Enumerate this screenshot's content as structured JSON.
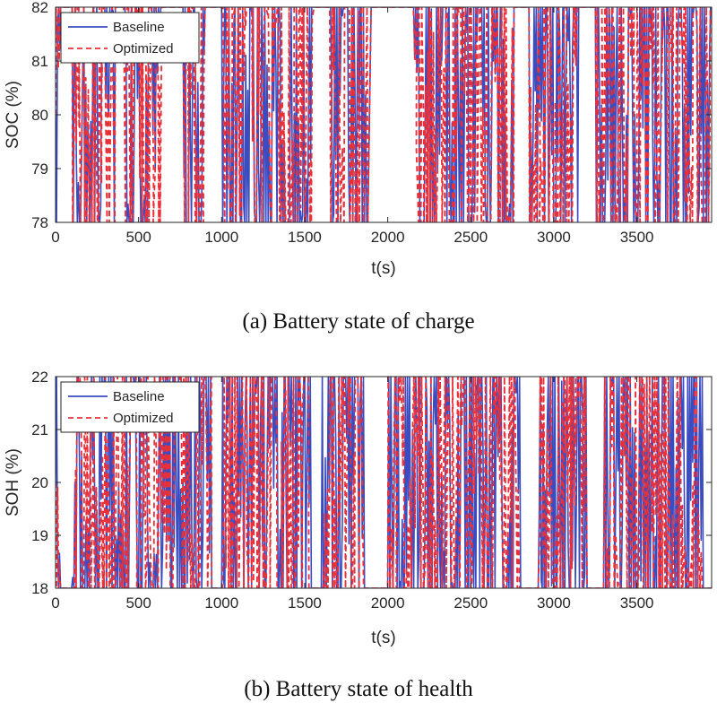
{
  "chart_data": [
    {
      "type": "line",
      "caption": "(a) Battery state of charge",
      "xlabel": "t(s)",
      "ylabel": "SOC (%)",
      "xlim": [
        0,
        3950
      ],
      "ylim": [
        78,
        82
      ],
      "x_ticks": [
        0,
        500,
        1000,
        1500,
        2000,
        2500,
        3000,
        3500
      ],
      "y_ticks": [
        78,
        79,
        80,
        81,
        82
      ],
      "grid": false,
      "legend_position": "top-left",
      "series": [
        {
          "name": "Baseline",
          "color": "#3b4cc0",
          "style": "solid"
        },
        {
          "name": "Optimized",
          "color": "#e8303a",
          "style": "dashed"
        }
      ],
      "signal": {
        "start": 80,
        "segments": [
          [
            0,
            80
          ],
          [
            30,
            82
          ],
          [
            100,
            82
          ],
          [
            150,
            78
          ],
          [
            170,
            82
          ],
          [
            200,
            79
          ],
          [
            230,
            82
          ],
          [
            260,
            78
          ],
          [
            290,
            82
          ],
          [
            320,
            80
          ],
          [
            360,
            82
          ],
          [
            410,
            82
          ],
          [
            450,
            78
          ],
          [
            480,
            82
          ],
          [
            520,
            78
          ],
          [
            560,
            82
          ],
          [
            600,
            79
          ],
          [
            640,
            82
          ],
          [
            760,
            82
          ],
          [
            800,
            78
          ],
          [
            830,
            82
          ],
          [
            870,
            78
          ],
          [
            900,
            82
          ],
          [
            1000,
            82
          ],
          [
            1050,
            78
          ],
          [
            1080,
            82
          ],
          [
            1120,
            78
          ],
          [
            1170,
            82
          ],
          [
            1210,
            78
          ],
          [
            1260,
            82
          ],
          [
            1300,
            78
          ],
          [
            1340,
            82
          ],
          [
            1400,
            78
          ],
          [
            1450,
            82
          ],
          [
            1500,
            78
          ],
          [
            1560,
            82
          ],
          [
            1650,
            82
          ],
          [
            1700,
            78
          ],
          [
            1740,
            82
          ],
          [
            1790,
            78
          ],
          [
            1840,
            82
          ],
          [
            1880,
            78
          ],
          [
            1900,
            82
          ],
          [
            2150,
            82
          ],
          [
            2200,
            78
          ],
          [
            2250,
            82
          ],
          [
            2300,
            79
          ],
          [
            2350,
            82
          ],
          [
            2400,
            78
          ],
          [
            2450,
            82
          ],
          [
            2500,
            78
          ],
          [
            2560,
            82
          ],
          [
            2600,
            78
          ],
          [
            2660,
            82
          ],
          [
            2720,
            78
          ],
          [
            2760,
            82
          ],
          [
            2850,
            82
          ],
          [
            2900,
            78
          ],
          [
            2950,
            82
          ],
          [
            3000,
            78
          ],
          [
            3060,
            82
          ],
          [
            3100,
            80
          ],
          [
            3150,
            82
          ],
          [
            3250,
            82
          ],
          [
            3300,
            78
          ],
          [
            3350,
            82
          ],
          [
            3400,
            78
          ],
          [
            3450,
            82
          ],
          [
            3500,
            78
          ],
          [
            3560,
            82
          ],
          [
            3620,
            79
          ],
          [
            3680,
            82
          ],
          [
            3720,
            78
          ],
          [
            3760,
            82
          ],
          [
            3800,
            78
          ],
          [
            3850,
            82
          ],
          [
            3900,
            78
          ],
          [
            3950,
            82
          ]
        ]
      }
    },
    {
      "type": "line",
      "caption": "(b) Battery state of health",
      "xlabel": "t(s)",
      "ylabel": "SOH (%)",
      "xlim": [
        0,
        3950
      ],
      "ylim": [
        18,
        22
      ],
      "x_ticks": [
        0,
        500,
        1000,
        1500,
        2000,
        2500,
        3000,
        3500
      ],
      "y_ticks": [
        18,
        19,
        20,
        21,
        22
      ],
      "grid": false,
      "legend_position": "top-left",
      "series": [
        {
          "name": "Baseline",
          "color": "#3b4cc0",
          "style": "solid"
        },
        {
          "name": "Optimized",
          "color": "#e8303a",
          "style": "dashed"
        }
      ],
      "signal": {
        "start": 20,
        "segments": [
          [
            0,
            20
          ],
          [
            30,
            18
          ],
          [
            90,
            18
          ],
          [
            130,
            22
          ],
          [
            170,
            18
          ],
          [
            210,
            21
          ],
          [
            260,
            18
          ],
          [
            300,
            22
          ],
          [
            340,
            18
          ],
          [
            380,
            20
          ],
          [
            420,
            18
          ],
          [
            460,
            22
          ],
          [
            500,
            18
          ],
          [
            540,
            21
          ],
          [
            580,
            18
          ],
          [
            620,
            20
          ],
          [
            700,
            18
          ],
          [
            740,
            22
          ],
          [
            780,
            18
          ],
          [
            820,
            19
          ],
          [
            860,
            18
          ],
          [
            900,
            22
          ],
          [
            940,
            18
          ],
          [
            1000,
            18
          ],
          [
            1050,
            22
          ],
          [
            1090,
            18
          ],
          [
            1140,
            21
          ],
          [
            1180,
            18
          ],
          [
            1220,
            22
          ],
          [
            1260,
            18
          ],
          [
            1300,
            22
          ],
          [
            1340,
            18
          ],
          [
            1400,
            22
          ],
          [
            1440,
            18
          ],
          [
            1500,
            22
          ],
          [
            1540,
            18
          ],
          [
            1600,
            18
          ],
          [
            1660,
            22
          ],
          [
            1700,
            18
          ],
          [
            1740,
            22
          ],
          [
            1780,
            18
          ],
          [
            1820,
            22
          ],
          [
            1860,
            18
          ],
          [
            2000,
            18
          ],
          [
            2050,
            22
          ],
          [
            2100,
            18
          ],
          [
            2150,
            21
          ],
          [
            2200,
            18
          ],
          [
            2260,
            22
          ],
          [
            2300,
            18
          ],
          [
            2360,
            21
          ],
          [
            2400,
            18
          ],
          [
            2460,
            22
          ],
          [
            2500,
            18
          ],
          [
            2560,
            22
          ],
          [
            2600,
            18
          ],
          [
            2640,
            22
          ],
          [
            2700,
            18
          ],
          [
            2760,
            22
          ],
          [
            2800,
            18
          ],
          [
            2900,
            18
          ],
          [
            2960,
            21
          ],
          [
            3000,
            18
          ],
          [
            3060,
            22
          ],
          [
            3100,
            18
          ],
          [
            3160,
            22
          ],
          [
            3200,
            18
          ],
          [
            3300,
            18
          ],
          [
            3360,
            22
          ],
          [
            3400,
            18
          ],
          [
            3460,
            22
          ],
          [
            3500,
            18
          ],
          [
            3560,
            22
          ],
          [
            3600,
            18
          ],
          [
            3660,
            22
          ],
          [
            3700,
            18
          ],
          [
            3760,
            22
          ],
          [
            3800,
            18
          ],
          [
            3860,
            22
          ],
          [
            3900,
            18
          ],
          [
            3950,
            18
          ]
        ]
      }
    }
  ]
}
